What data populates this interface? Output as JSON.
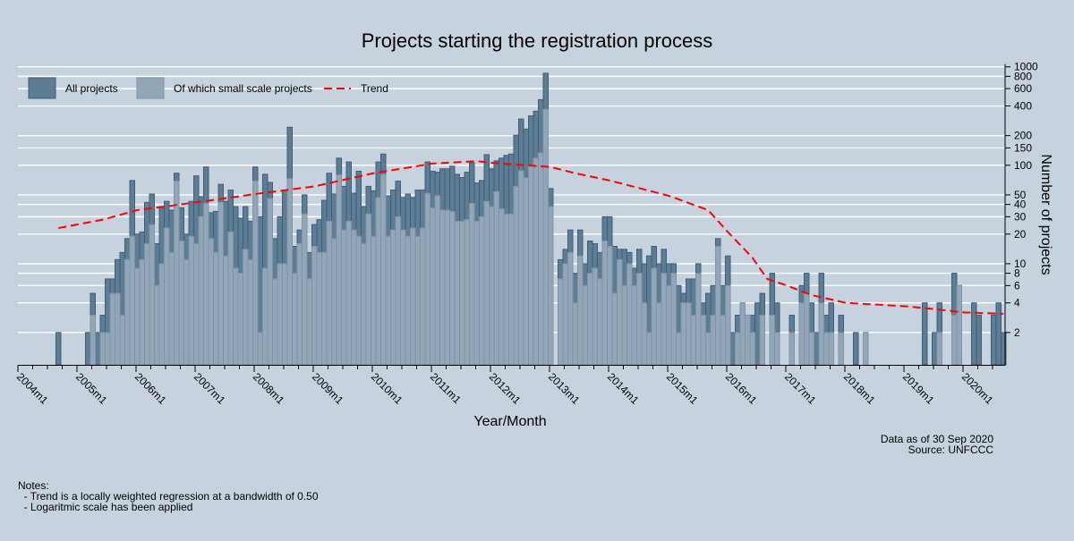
{
  "chart_data": {
    "type": "bar",
    "title": "Projects starting the registration process",
    "xlabel": "Year/Month",
    "ylabel": "Number of projects",
    "y_scale": "log",
    "ylim": [
      1,
      1000
    ],
    "y_axis_side": "right",
    "grid": true,
    "legend_placement": "top-left",
    "x_start": "2004m1",
    "x_end": "2020m9",
    "x_tick_labels": [
      "2004m1",
      "2005m1",
      "2006m1",
      "2007m1",
      "2008m1",
      "2009m1",
      "2010m1",
      "2011m1",
      "2012m1",
      "2013m1",
      "2014m1",
      "2015m1",
      "2016m1",
      "2017m1",
      "2018m1",
      "2019m1",
      "2020m1"
    ],
    "y_tick_labels": [
      2,
      4,
      6,
      8,
      10,
      20,
      30,
      40,
      50,
      100,
      150,
      200,
      400,
      600,
      800,
      1000
    ],
    "legend": {
      "all": "All projects",
      "small": "Of which small scale projects",
      "trend": "Trend"
    },
    "colors": {
      "all_fill": "#5d7d95",
      "all_stroke": "#3f5f78",
      "small_fill": "#93a6b8",
      "small_stroke": "#7f93a7",
      "trend": "#ff0000",
      "background": "#c6d2de",
      "grid": "#ffffff"
    },
    "series": [
      {
        "name": "All projects",
        "values": [
          0,
          0,
          0,
          0,
          0,
          0,
          0,
          0,
          2,
          0,
          0,
          0,
          0,
          0,
          2,
          5,
          2,
          3,
          7,
          7,
          11,
          13,
          18,
          70,
          20,
          21,
          42,
          51,
          16,
          37,
          43,
          35,
          83,
          37,
          20,
          43,
          78,
          48,
          96,
          33,
          34,
          64,
          43,
          56,
          38,
          29,
          38,
          27,
          96,
          30,
          81,
          67,
          18,
          30,
          56,
          243,
          15,
          22,
          50,
          13,
          25,
          28,
          44,
          83,
          51,
          118,
          61,
          108,
          52,
          87,
          38,
          61,
          55,
          108,
          130,
          49,
          56,
          69,
          47,
          51,
          47,
          56,
          56,
          108,
          87,
          85,
          92,
          92,
          98,
          81,
          75,
          85,
          106,
          66,
          70,
          128,
          92,
          111,
          118,
          126,
          130,
          202,
          295,
          233,
          317,
          354,
          464,
          860,
          58,
          0,
          11,
          14,
          22,
          8,
          22,
          10,
          17,
          16,
          13,
          30,
          30,
          15,
          14,
          14,
          13,
          9,
          14,
          10,
          12,
          15,
          10,
          14,
          10,
          10,
          6,
          5,
          7,
          7,
          10,
          4,
          5,
          6,
          18,
          6,
          12,
          2,
          3,
          4,
          3,
          3,
          4,
          5,
          0,
          8,
          4,
          0,
          0,
          3,
          0,
          6,
          8,
          4,
          2,
          8,
          3,
          4,
          0,
          3,
          0,
          0,
          2,
          0,
          2,
          0,
          0,
          0,
          0,
          0,
          0,
          0,
          0,
          0,
          0,
          0,
          4,
          0,
          2,
          4,
          0,
          0,
          8,
          6,
          0,
          0,
          4,
          3,
          0,
          0,
          3,
          4,
          2
        ]
      },
      {
        "name": "Of which small scale projects",
        "values": [
          0,
          0,
          0,
          0,
          0,
          0,
          0,
          0,
          0,
          0,
          0,
          0,
          0,
          0,
          0,
          3,
          0,
          2,
          2,
          5,
          5,
          3,
          11,
          19,
          9,
          11,
          16,
          25,
          6,
          10,
          23,
          13,
          69,
          17,
          11,
          19,
          16,
          30,
          41,
          18,
          13,
          42,
          12,
          21,
          9,
          8,
          14,
          11,
          69,
          2,
          9,
          46,
          7,
          10,
          10,
          73,
          8,
          16,
          32,
          7,
          15,
          13,
          13,
          27,
          18,
          80,
          22,
          27,
          22,
          19,
          16,
          32,
          19,
          47,
          81,
          19,
          22,
          30,
          22,
          19,
          23,
          19,
          23,
          52,
          37,
          49,
          35,
          35,
          34,
          27,
          27,
          28,
          41,
          27,
          30,
          43,
          38,
          54,
          36,
          32,
          32,
          61,
          88,
          75,
          98,
          118,
          134,
          370,
          38,
          0,
          7,
          10,
          13,
          4,
          12,
          6,
          8,
          9,
          7,
          17,
          15,
          5,
          11,
          6,
          10,
          6,
          8,
          4,
          2,
          9,
          4,
          8,
          6,
          8,
          2,
          4,
          4,
          3,
          8,
          3,
          2,
          3,
          15,
          3,
          6,
          0,
          2,
          4,
          3,
          2,
          0,
          3,
          0,
          3,
          2,
          0,
          0,
          2,
          0,
          4,
          5,
          2,
          0,
          4,
          2,
          2,
          0,
          2,
          0,
          0,
          0,
          0,
          2,
          0,
          0,
          0,
          0,
          0,
          0,
          0,
          0,
          0,
          0,
          0,
          0,
          0,
          0,
          2,
          0,
          0,
          3,
          6,
          0,
          0,
          0,
          0,
          0,
          0,
          0,
          0,
          0
        ]
      },
      {
        "name": "Trend",
        "points": [
          [
            "2004m9",
            23
          ],
          [
            "2005m6",
            28
          ],
          [
            "2006m1",
            35
          ],
          [
            "2007m1",
            42
          ],
          [
            "2008m1",
            51
          ],
          [
            "2009m1",
            61
          ],
          [
            "2010m1",
            83
          ],
          [
            "2011m1",
            104
          ],
          [
            "2011m10",
            110
          ],
          [
            "2012m1",
            106
          ],
          [
            "2013m1",
            96
          ],
          [
            "2013m6",
            83
          ],
          [
            "2014m1",
            70
          ],
          [
            "2015m1",
            49
          ],
          [
            "2015m9",
            35
          ],
          [
            "2016m1",
            21
          ],
          [
            "2016m6",
            11.5
          ],
          [
            "2016m9",
            7
          ],
          [
            "2017m1",
            6
          ],
          [
            "2017m6",
            4.8
          ],
          [
            "2018m1",
            4
          ],
          [
            "2019m1",
            3.7
          ],
          [
            "2019m6",
            3.5
          ],
          [
            "2020m1",
            3.2
          ],
          [
            "2020m9",
            3.1
          ]
        ]
      }
    ]
  },
  "footer": {
    "data_as_of": "Data as of 30 Sep 2020",
    "source": "Source: UNFCCC"
  },
  "notes": {
    "heading": "Notes:",
    "lines": [
      "  - Trend is a locally weighted regression at a bandwidth of 0.50",
      "  - Logaritmic scale has been applied"
    ]
  }
}
